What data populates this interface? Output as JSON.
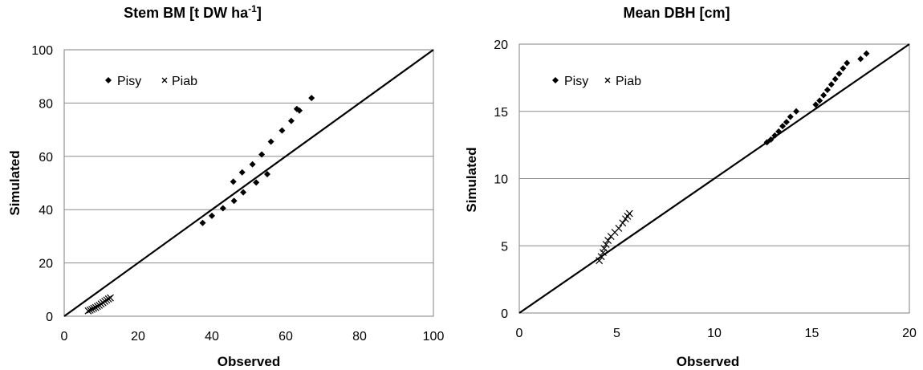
{
  "chart_data": [
    {
      "type": "scatter",
      "title": "Stem BM [t DW ha",
      "title_sup": "-1",
      "title_end": "]",
      "xlabel": "Observed",
      "ylabel": "Simulated",
      "xlim": [
        0,
        100
      ],
      "ylim": [
        0,
        100
      ],
      "xticks": [
        "0",
        "20",
        "40",
        "60",
        "80",
        "100"
      ],
      "yticks": [
        "0",
        "20",
        "40",
        "60",
        "80",
        "100"
      ],
      "grid": true,
      "legend_position": "top-left",
      "reference_line": "1:1",
      "series": [
        {
          "name": "Pisy",
          "marker": "diamond",
          "points": [
            [
              37.5,
              35.0
            ],
            [
              40.0,
              37.7
            ],
            [
              43.0,
              40.5
            ],
            [
              46.0,
              43.3
            ],
            [
              48.5,
              46.5
            ],
            [
              45.8,
              50.5
            ],
            [
              52.0,
              50.2
            ],
            [
              48.2,
              54.0
            ],
            [
              55.0,
              53.3
            ],
            [
              51.0,
              57.0
            ],
            [
              53.5,
              60.7
            ],
            [
              56.0,
              65.5
            ],
            [
              59.0,
              69.7
            ],
            [
              61.5,
              73.3
            ],
            [
              63.0,
              77.8
            ],
            [
              63.7,
              77.2
            ],
            [
              67.0,
              81.9
            ]
          ]
        },
        {
          "name": "Piab",
          "marker": "cross",
          "points": [
            [
              6.5,
              2.0
            ],
            [
              7.0,
              2.3
            ],
            [
              7.5,
              2.6
            ],
            [
              8.0,
              3.0
            ],
            [
              8.5,
              3.3
            ],
            [
              9.0,
              3.7
            ],
            [
              9.5,
              4.1
            ],
            [
              10.0,
              4.6
            ],
            [
              10.5,
              5.1
            ],
            [
              11.0,
              5.6
            ],
            [
              11.5,
              6.1
            ],
            [
              12.0,
              6.5
            ],
            [
              12.5,
              6.9
            ]
          ]
        }
      ]
    },
    {
      "type": "scatter",
      "title": "Mean DBH [cm]",
      "xlabel": "Observed",
      "ylabel": "Simulated",
      "xlim": [
        0,
        20
      ],
      "ylim": [
        0,
        20
      ],
      "xticks": [
        "0",
        "5",
        "10",
        "15",
        "20"
      ],
      "yticks": [
        "0",
        "5",
        "10",
        "15",
        "20"
      ],
      "grid": true,
      "legend_position": "top-left",
      "reference_line": "1:1",
      "series": [
        {
          "name": "Pisy",
          "marker": "diamond",
          "points": [
            [
              12.7,
              12.7
            ],
            [
              12.9,
              12.9
            ],
            [
              13.1,
              13.2
            ],
            [
              13.3,
              13.5
            ],
            [
              13.5,
              13.9
            ],
            [
              13.7,
              14.2
            ],
            [
              13.9,
              14.6
            ],
            [
              14.2,
              15.0
            ],
            [
              15.2,
              15.5
            ],
            [
              15.4,
              15.8
            ],
            [
              15.6,
              16.2
            ],
            [
              15.8,
              16.6
            ],
            [
              16.0,
              17.0
            ],
            [
              16.2,
              17.4
            ],
            [
              16.4,
              17.8
            ],
            [
              16.6,
              18.2
            ],
            [
              16.8,
              18.6
            ],
            [
              17.5,
              18.9
            ],
            [
              17.8,
              19.3
            ]
          ]
        },
        {
          "name": "Piab",
          "marker": "cross",
          "points": [
            [
              4.1,
              3.9
            ],
            [
              4.2,
              4.2
            ],
            [
              4.3,
              4.5
            ],
            [
              4.35,
              4.8
            ],
            [
              4.45,
              5.1
            ],
            [
              4.55,
              5.4
            ],
            [
              4.7,
              5.7
            ],
            [
              4.9,
              6.0
            ],
            [
              5.1,
              6.3
            ],
            [
              5.3,
              6.7
            ],
            [
              5.45,
              7.0
            ],
            [
              5.55,
              7.2
            ],
            [
              5.65,
              7.4
            ]
          ]
        }
      ]
    }
  ]
}
